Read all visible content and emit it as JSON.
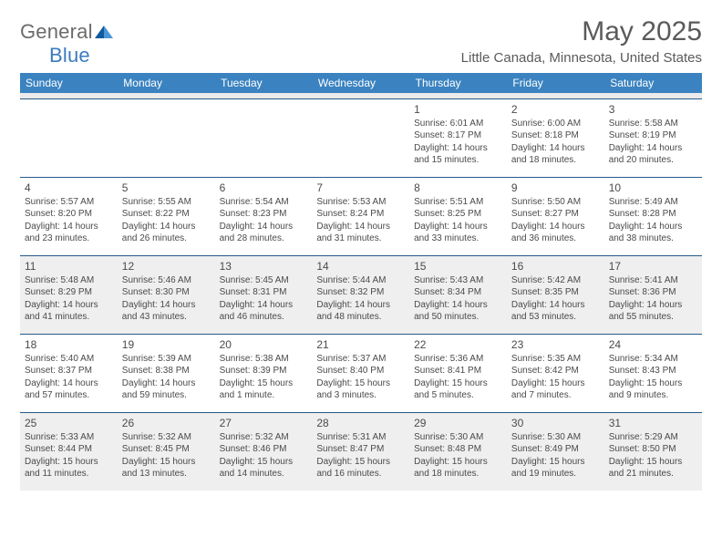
{
  "logo": {
    "gray": "General",
    "blue": "Blue"
  },
  "title": "May 2025",
  "location": "Little Canada, Minnesota, United States",
  "colors": {
    "header_bg": "#3b83c0",
    "header_text": "#ffffff",
    "row_border": "#255a8a",
    "odd_row_bg": "#f0efef",
    "text": "#4a4a4a",
    "logo_gray": "#6b6b6b",
    "logo_blue": "#3b7bbf",
    "tri_dark": "#0f5b9e",
    "tri_light": "#4a96d6"
  },
  "typography": {
    "day_font_size": 10,
    "daynum_font_size": 12,
    "th_font_size": 12,
    "title_font_size": 30,
    "location_font_size": 15
  },
  "weekdays": [
    "Sunday",
    "Monday",
    "Tuesday",
    "Wednesday",
    "Thursday",
    "Friday",
    "Saturday"
  ],
  "weeks": [
    [
      {
        "n": "",
        "sr": "",
        "ss": "",
        "dl": ""
      },
      {
        "n": "",
        "sr": "",
        "ss": "",
        "dl": ""
      },
      {
        "n": "",
        "sr": "",
        "ss": "",
        "dl": ""
      },
      {
        "n": "",
        "sr": "",
        "ss": "",
        "dl": ""
      },
      {
        "n": "1",
        "sr": "Sunrise: 6:01 AM",
        "ss": "Sunset: 8:17 PM",
        "dl": "Daylight: 14 hours and 15 minutes."
      },
      {
        "n": "2",
        "sr": "Sunrise: 6:00 AM",
        "ss": "Sunset: 8:18 PM",
        "dl": "Daylight: 14 hours and 18 minutes."
      },
      {
        "n": "3",
        "sr": "Sunrise: 5:58 AM",
        "ss": "Sunset: 8:19 PM",
        "dl": "Daylight: 14 hours and 20 minutes."
      }
    ],
    [
      {
        "n": "4",
        "sr": "Sunrise: 5:57 AM",
        "ss": "Sunset: 8:20 PM",
        "dl": "Daylight: 14 hours and 23 minutes."
      },
      {
        "n": "5",
        "sr": "Sunrise: 5:55 AM",
        "ss": "Sunset: 8:22 PM",
        "dl": "Daylight: 14 hours and 26 minutes."
      },
      {
        "n": "6",
        "sr": "Sunrise: 5:54 AM",
        "ss": "Sunset: 8:23 PM",
        "dl": "Daylight: 14 hours and 28 minutes."
      },
      {
        "n": "7",
        "sr": "Sunrise: 5:53 AM",
        "ss": "Sunset: 8:24 PM",
        "dl": "Daylight: 14 hours and 31 minutes."
      },
      {
        "n": "8",
        "sr": "Sunrise: 5:51 AM",
        "ss": "Sunset: 8:25 PM",
        "dl": "Daylight: 14 hours and 33 minutes."
      },
      {
        "n": "9",
        "sr": "Sunrise: 5:50 AM",
        "ss": "Sunset: 8:27 PM",
        "dl": "Daylight: 14 hours and 36 minutes."
      },
      {
        "n": "10",
        "sr": "Sunrise: 5:49 AM",
        "ss": "Sunset: 8:28 PM",
        "dl": "Daylight: 14 hours and 38 minutes."
      }
    ],
    [
      {
        "n": "11",
        "sr": "Sunrise: 5:48 AM",
        "ss": "Sunset: 8:29 PM",
        "dl": "Daylight: 14 hours and 41 minutes."
      },
      {
        "n": "12",
        "sr": "Sunrise: 5:46 AM",
        "ss": "Sunset: 8:30 PM",
        "dl": "Daylight: 14 hours and 43 minutes."
      },
      {
        "n": "13",
        "sr": "Sunrise: 5:45 AM",
        "ss": "Sunset: 8:31 PM",
        "dl": "Daylight: 14 hours and 46 minutes."
      },
      {
        "n": "14",
        "sr": "Sunrise: 5:44 AM",
        "ss": "Sunset: 8:32 PM",
        "dl": "Daylight: 14 hours and 48 minutes."
      },
      {
        "n": "15",
        "sr": "Sunrise: 5:43 AM",
        "ss": "Sunset: 8:34 PM",
        "dl": "Daylight: 14 hours and 50 minutes."
      },
      {
        "n": "16",
        "sr": "Sunrise: 5:42 AM",
        "ss": "Sunset: 8:35 PM",
        "dl": "Daylight: 14 hours and 53 minutes."
      },
      {
        "n": "17",
        "sr": "Sunrise: 5:41 AM",
        "ss": "Sunset: 8:36 PM",
        "dl": "Daylight: 14 hours and 55 minutes."
      }
    ],
    [
      {
        "n": "18",
        "sr": "Sunrise: 5:40 AM",
        "ss": "Sunset: 8:37 PM",
        "dl": "Daylight: 14 hours and 57 minutes."
      },
      {
        "n": "19",
        "sr": "Sunrise: 5:39 AM",
        "ss": "Sunset: 8:38 PM",
        "dl": "Daylight: 14 hours and 59 minutes."
      },
      {
        "n": "20",
        "sr": "Sunrise: 5:38 AM",
        "ss": "Sunset: 8:39 PM",
        "dl": "Daylight: 15 hours and 1 minute."
      },
      {
        "n": "21",
        "sr": "Sunrise: 5:37 AM",
        "ss": "Sunset: 8:40 PM",
        "dl": "Daylight: 15 hours and 3 minutes."
      },
      {
        "n": "22",
        "sr": "Sunrise: 5:36 AM",
        "ss": "Sunset: 8:41 PM",
        "dl": "Daylight: 15 hours and 5 minutes."
      },
      {
        "n": "23",
        "sr": "Sunrise: 5:35 AM",
        "ss": "Sunset: 8:42 PM",
        "dl": "Daylight: 15 hours and 7 minutes."
      },
      {
        "n": "24",
        "sr": "Sunrise: 5:34 AM",
        "ss": "Sunset: 8:43 PM",
        "dl": "Daylight: 15 hours and 9 minutes."
      }
    ],
    [
      {
        "n": "25",
        "sr": "Sunrise: 5:33 AM",
        "ss": "Sunset: 8:44 PM",
        "dl": "Daylight: 15 hours and 11 minutes."
      },
      {
        "n": "26",
        "sr": "Sunrise: 5:32 AM",
        "ss": "Sunset: 8:45 PM",
        "dl": "Daylight: 15 hours and 13 minutes."
      },
      {
        "n": "27",
        "sr": "Sunrise: 5:32 AM",
        "ss": "Sunset: 8:46 PM",
        "dl": "Daylight: 15 hours and 14 minutes."
      },
      {
        "n": "28",
        "sr": "Sunrise: 5:31 AM",
        "ss": "Sunset: 8:47 PM",
        "dl": "Daylight: 15 hours and 16 minutes."
      },
      {
        "n": "29",
        "sr": "Sunrise: 5:30 AM",
        "ss": "Sunset: 8:48 PM",
        "dl": "Daylight: 15 hours and 18 minutes."
      },
      {
        "n": "30",
        "sr": "Sunrise: 5:30 AM",
        "ss": "Sunset: 8:49 PM",
        "dl": "Daylight: 15 hours and 19 minutes."
      },
      {
        "n": "31",
        "sr": "Sunrise: 5:29 AM",
        "ss": "Sunset: 8:50 PM",
        "dl": "Daylight: 15 hours and 21 minutes."
      }
    ]
  ]
}
